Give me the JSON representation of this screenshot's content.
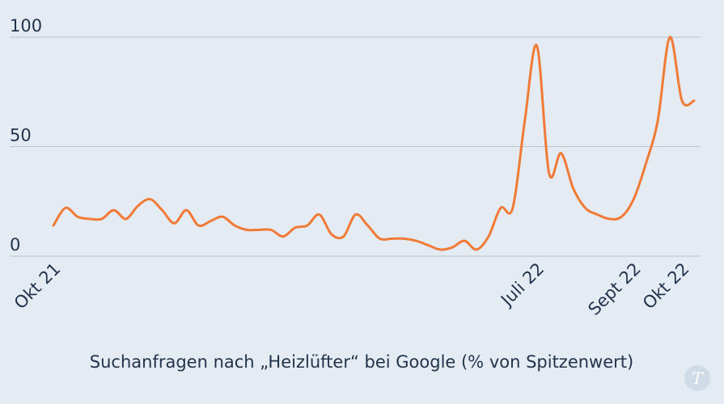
{
  "chart_data": {
    "type": "line",
    "title": "",
    "caption": "Suchanfragen nach „Heizlüfter“ bei Google (% von Spitzenwert)",
    "xlabel": "",
    "ylabel": "",
    "ylim": [
      0,
      100
    ],
    "yticks": [
      0,
      50,
      100
    ],
    "grid": true,
    "legend": "none",
    "color": "#f07a36",
    "x_ticks": [
      {
        "label": "Okt 21",
        "x": 0
      },
      {
        "label": "Juli 22",
        "x": 40
      },
      {
        "label": "Sept 22",
        "x": 48
      },
      {
        "label": "Okt 22",
        "x": 52
      }
    ],
    "series": [
      {
        "name": "Heizlüfter",
        "x": [
          0,
          1,
          2,
          3,
          4,
          5,
          6,
          7,
          8,
          9,
          10,
          11,
          12,
          13,
          14,
          15,
          16,
          17,
          18,
          19,
          20,
          21,
          22,
          23,
          24,
          25,
          26,
          27,
          28,
          29,
          30,
          31,
          32,
          33,
          34,
          35,
          36,
          37,
          38,
          39,
          40,
          41,
          42,
          43,
          44,
          45,
          46,
          47,
          48,
          49,
          50,
          51,
          52,
          53
        ],
        "values": [
          14,
          22,
          18,
          17,
          17,
          21,
          17,
          23,
          26,
          21,
          15,
          21,
          14,
          16,
          18,
          14,
          12,
          12,
          12,
          9,
          13,
          14,
          19,
          10,
          9,
          19,
          14,
          8,
          8,
          8,
          7,
          5,
          3,
          4,
          7,
          3,
          9,
          22,
          22,
          62,
          96,
          38,
          47,
          31,
          22,
          19,
          17,
          18,
          26,
          42,
          62,
          100,
          71,
          71
        ]
      }
    ]
  },
  "brand": {
    "logo_letter": "T"
  }
}
